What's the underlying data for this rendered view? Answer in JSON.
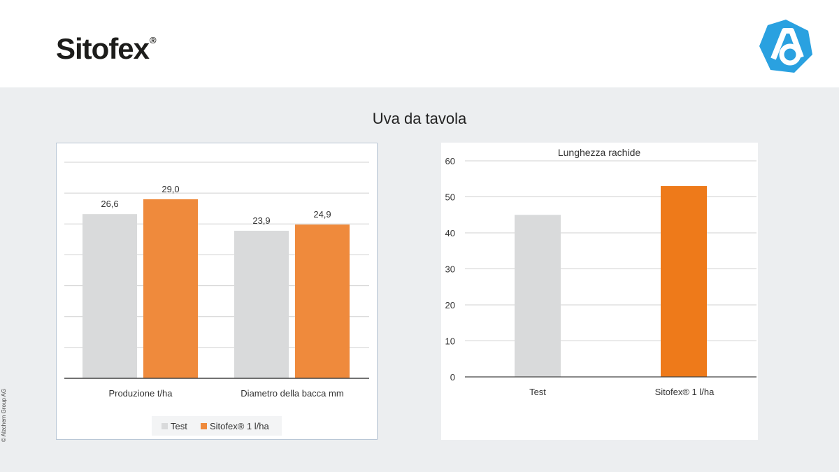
{
  "header": {
    "logo_text": "Sitofex",
    "logo_reg": "®",
    "brand_icon": "acc-logo-icon"
  },
  "page_title": "Uva da tavola",
  "copyright": "© Alzchem Group AG",
  "colors": {
    "test": "#d9dadb",
    "sitofex_left": "#ef8a3c",
    "sitofex_right": "#ee7a1a",
    "grid": "#d0d0d0"
  },
  "chart_data": [
    {
      "type": "bar",
      "title": "",
      "categories": [
        "Produzione t/ha",
        "Diametro della bacca mm"
      ],
      "series": [
        {
          "name": "Test",
          "values": [
            26.6,
            23.9
          ],
          "labels": [
            "26,6",
            "23,9"
          ]
        },
        {
          "name": "Sitofex® 1 l/ha",
          "values": [
            29.0,
            24.9
          ],
          "labels": [
            "29,0",
            "24,9"
          ]
        }
      ],
      "ylim": [
        0,
        35
      ],
      "grid": true,
      "legend": "bottom",
      "yaxis_labels_visible": false
    },
    {
      "type": "bar",
      "title": "Lunghezza rachide",
      "categories": [
        "Test",
        "Sitofex® 1 l/ha"
      ],
      "values": [
        45,
        53
      ],
      "ylim": [
        0,
        60
      ],
      "yticks": [
        "0",
        "10",
        "20",
        "30",
        "40",
        "50",
        "60"
      ],
      "grid": true,
      "legend": "none"
    }
  ]
}
